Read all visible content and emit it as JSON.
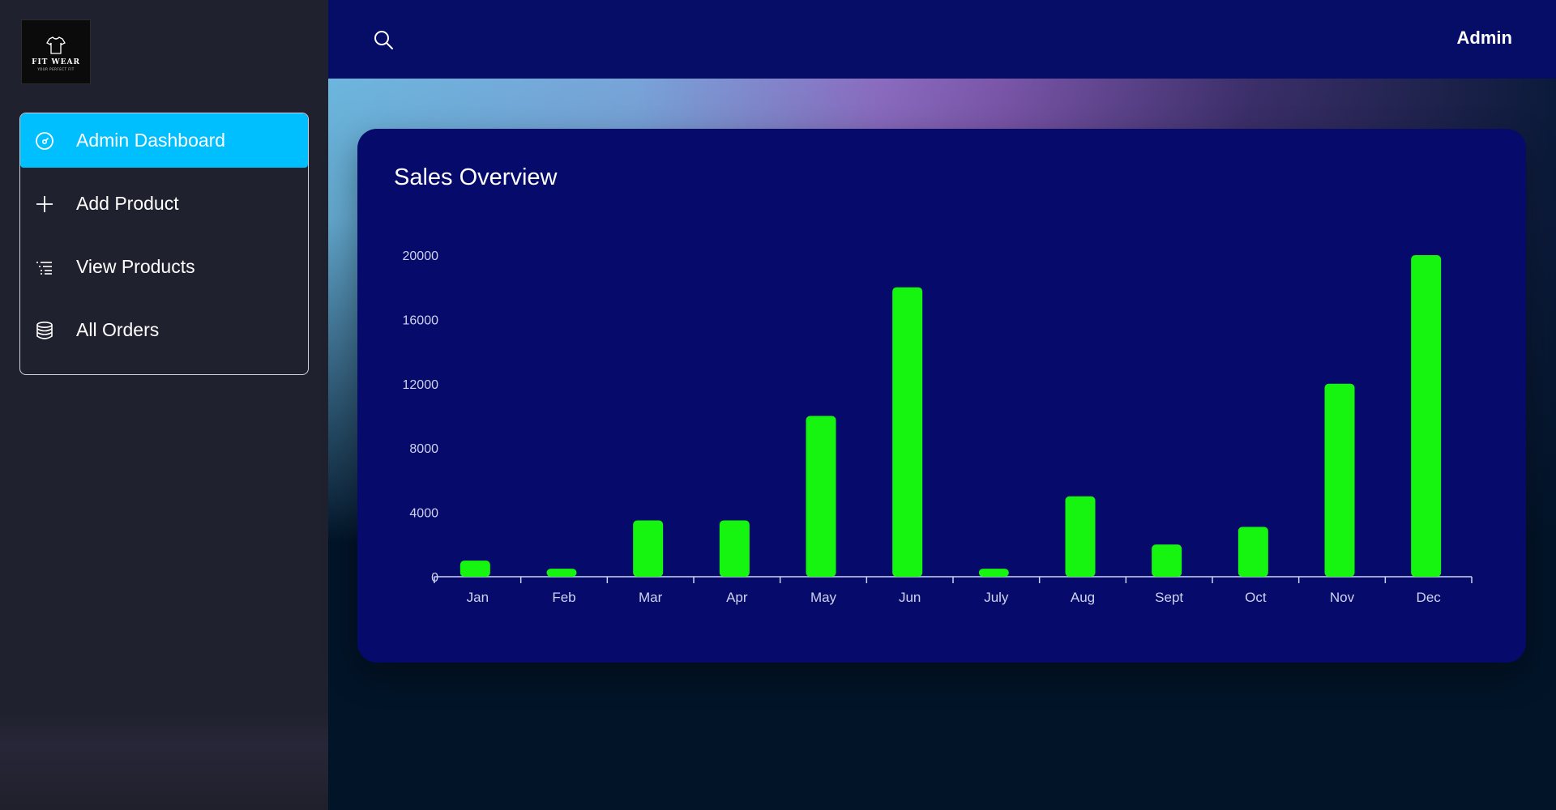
{
  "sidebar": {
    "logo": {
      "brand": "FIT WEAR",
      "tagline": "YOUR PERFECT FIT",
      "icon": "tshirt-icon"
    },
    "items": [
      {
        "label": "Admin Dashboard",
        "icon": "gauge-icon",
        "active": true
      },
      {
        "label": "Add Product",
        "icon": "plus-icon",
        "active": false
      },
      {
        "label": "View Products",
        "icon": "list-icon",
        "active": false
      },
      {
        "label": "All Orders",
        "icon": "database-icon",
        "active": false
      }
    ]
  },
  "topbar": {
    "user_label": "Admin",
    "search_icon": "search-icon"
  },
  "colors": {
    "accent": "#00bfff",
    "bar": "#16f50f",
    "topbar": "#050d66",
    "card": "#050a6b",
    "sidebar": "#20212e"
  },
  "card": {
    "title": "Sales Overview"
  },
  "chart_data": {
    "type": "bar",
    "title": "Sales Overview",
    "categories": [
      "Jan",
      "Feb",
      "Mar",
      "Apr",
      "May",
      "Jun",
      "July",
      "Aug",
      "Sept",
      "Oct",
      "Nov",
      "Dec"
    ],
    "values": [
      1000,
      500,
      3500,
      3500,
      10000,
      18000,
      500,
      5000,
      2000,
      3100,
      12000,
      20000
    ],
    "yticks": [
      0,
      4000,
      8000,
      12000,
      16000,
      20000
    ],
    "ylim": [
      0,
      20000
    ],
    "grid": false,
    "xlabel": "",
    "ylabel": ""
  }
}
